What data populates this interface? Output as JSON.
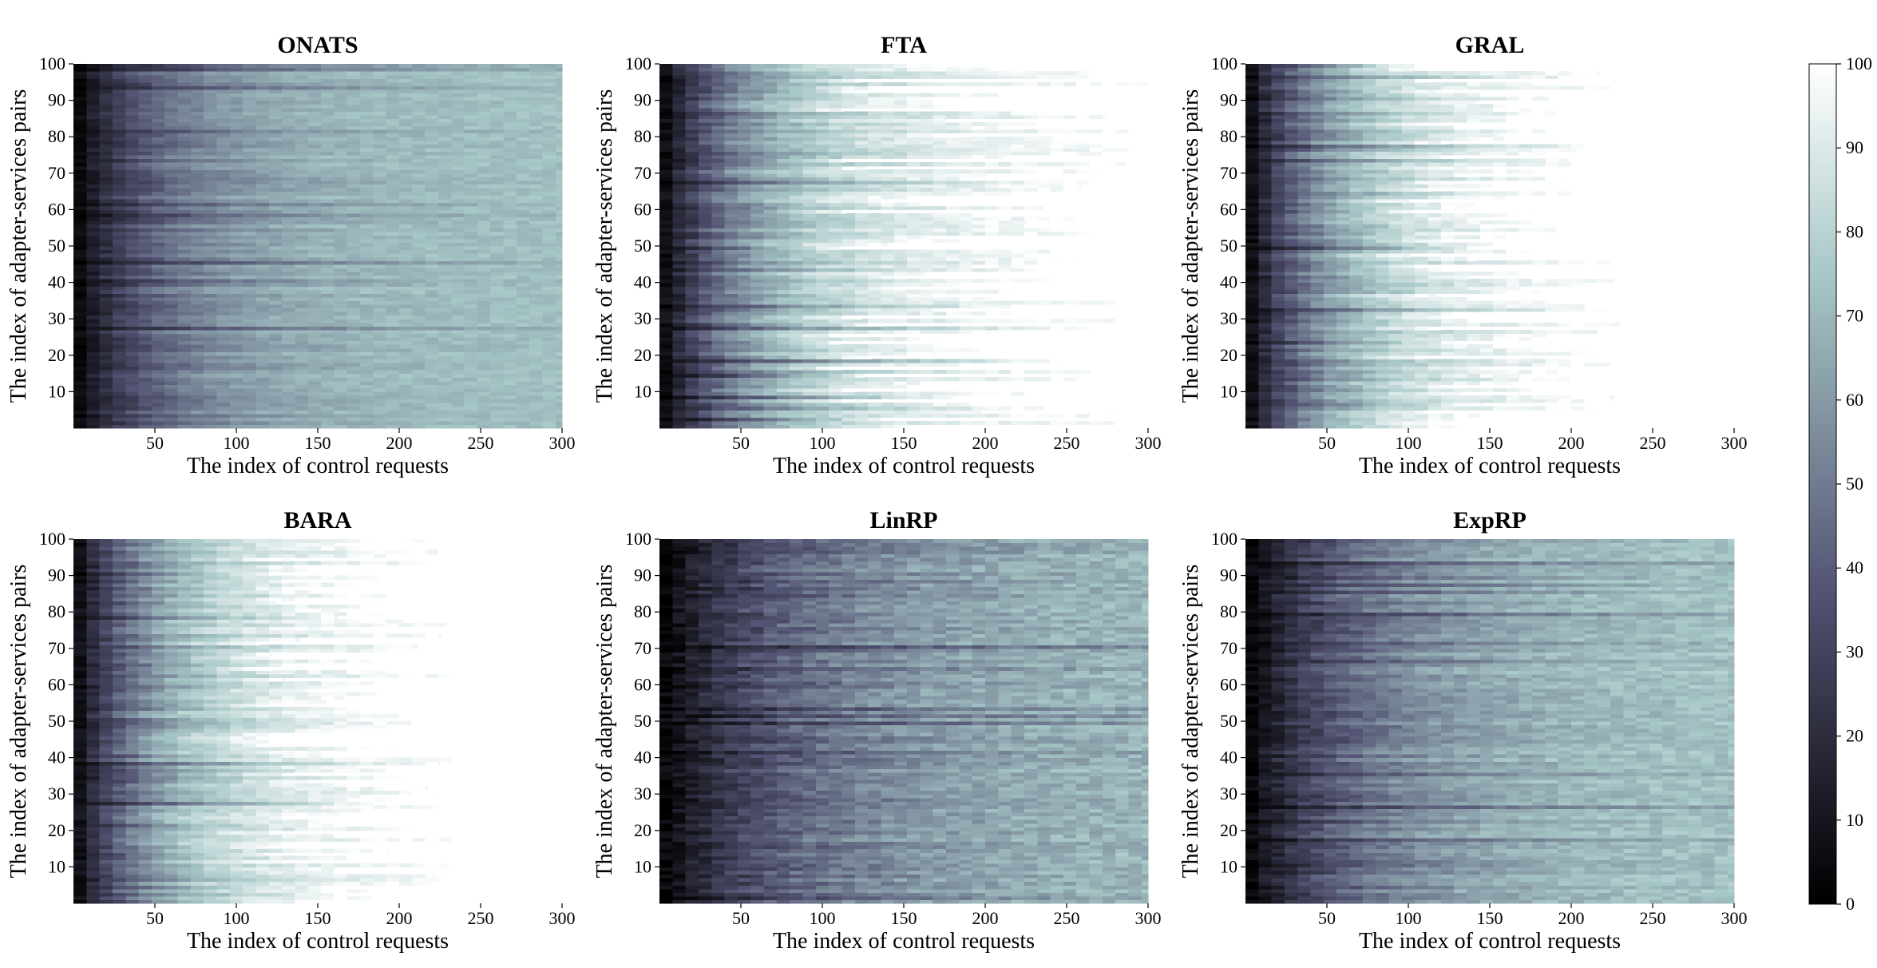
{
  "chart_data": {
    "type": "heatmap",
    "colormap": "bone",
    "colorbar": {
      "min": 0,
      "max": 100,
      "ticks": [
        0,
        10,
        20,
        30,
        40,
        50,
        60,
        70,
        80,
        90,
        100
      ]
    },
    "panels": [
      {
        "title": "ONATS",
        "xlabel": "The index of control requests",
        "ylabel": "The index of adapter-services pairs",
        "xlim": [
          0,
          300
        ],
        "ylim": [
          0,
          100
        ],
        "xticks": [
          50,
          100,
          150,
          200,
          250,
          300
        ],
        "yticks": [
          10,
          20,
          30,
          40,
          50,
          60,
          70,
          80,
          90,
          100
        ],
        "end_request_range": [
          300,
          300
        ],
        "midpoint_request": 60,
        "saturation_value": 73,
        "spread": 0.25,
        "seed": 11
      },
      {
        "title": "FTA",
        "xlabel": "The index of control requests",
        "ylabel": "The index of adapter-services pairs",
        "xlim": [
          0,
          300
        ],
        "ylim": [
          0,
          100
        ],
        "xticks": [
          50,
          100,
          150,
          200,
          250,
          300
        ],
        "yticks": [
          10,
          20,
          30,
          40,
          50,
          60,
          70,
          80,
          90,
          100
        ],
        "end_request_range": [
          110,
          300
        ],
        "midpoint_request": 55,
        "saturation_value": 92,
        "spread": 0.3,
        "seed": 23
      },
      {
        "title": "GRAL",
        "xlabel": "The index of control requests",
        "ylabel": "The index of adapter-services pairs",
        "xlim": [
          0,
          300
        ],
        "ylim": [
          0,
          100
        ],
        "xticks": [
          50,
          100,
          150,
          200,
          250,
          300
        ],
        "yticks": [
          10,
          20,
          30,
          40,
          50,
          60,
          70,
          80,
          90,
          100
        ],
        "end_request_range": [
          100,
          232
        ],
        "midpoint_request": 50,
        "saturation_value": 92,
        "spread": 0.3,
        "seed": 37
      },
      {
        "title": "BARA",
        "xlabel": "The index of control requests",
        "ylabel": "The index of adapter-services pairs",
        "xlim": [
          0,
          300
        ],
        "ylim": [
          0,
          100
        ],
        "xticks": [
          50,
          100,
          150,
          200,
          250,
          300
        ],
        "yticks": [
          10,
          20,
          30,
          40,
          50,
          60,
          70,
          80,
          90,
          100
        ],
        "end_request_range": [
          110,
          232
        ],
        "midpoint_request": 50,
        "saturation_value": 92,
        "spread": 0.3,
        "seed": 41
      },
      {
        "title": "LinRP",
        "xlabel": "The index of control requests",
        "ylabel": "The index of adapter-services pairs",
        "xlim": [
          0,
          300
        ],
        "ylim": [
          0,
          100
        ],
        "xticks": [
          50,
          100,
          150,
          200,
          250,
          300
        ],
        "yticks": [
          10,
          20,
          30,
          40,
          50,
          60,
          70,
          80,
          90,
          100
        ],
        "end_request_range": [
          300,
          300
        ],
        "midpoint_request": 95,
        "saturation_value": 72,
        "spread": 0.45,
        "seed": 53
      },
      {
        "title": "ExpRP",
        "xlabel": "The index of control requests",
        "ylabel": "The index of adapter-services pairs",
        "xlim": [
          0,
          300
        ],
        "ylim": [
          0,
          100
        ],
        "xticks": [
          50,
          100,
          150,
          200,
          250,
          300
        ],
        "yticks": [
          10,
          20,
          30,
          40,
          50,
          60,
          70,
          80,
          90,
          100
        ],
        "end_request_range": [
          300,
          300
        ],
        "midpoint_request": 75,
        "saturation_value": 75,
        "spread": 0.35,
        "seed": 67
      }
    ]
  }
}
